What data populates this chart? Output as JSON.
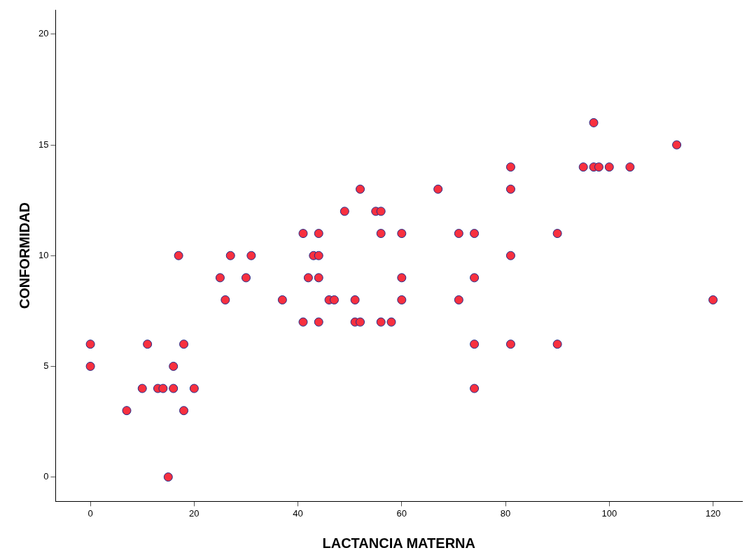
{
  "chart_data": {
    "type": "scatter",
    "xlabel": "LACTANCIA MATERNA",
    "ylabel": "CONFORMIDAD",
    "marker": "circle",
    "xlim": [
      -6.7,
      125.6
    ],
    "xticks": [
      0,
      20,
      40,
      60,
      80,
      100,
      120
    ],
    "ylim": [
      -1.1,
      21.1
    ],
    "yticks": [
      0,
      5,
      10,
      15,
      20
    ],
    "series": [
      {
        "color": "#f8303f",
        "x": [
          0,
          0,
          7,
          10,
          11,
          13,
          14,
          15,
          16,
          16,
          17,
          18,
          18,
          20,
          25,
          26,
          27,
          30,
          31,
          37,
          41,
          41,
          42,
          43,
          44,
          44,
          44,
          44,
          46,
          47,
          49,
          51,
          51,
          52,
          52,
          55,
          56,
          56,
          56,
          58,
          60,
          60,
          60,
          67,
          71,
          71,
          74,
          74,
          74,
          74,
          81,
          81,
          81,
          81,
          90,
          90,
          95,
          97,
          97,
          98,
          100,
          104,
          113,
          120
        ],
        "values": [
          6,
          5,
          3,
          4,
          6,
          4,
          4,
          0,
          5,
          4,
          10,
          6,
          3,
          4,
          9,
          8,
          10,
          9,
          10,
          8,
          11,
          7,
          9,
          10,
          10,
          11,
          9,
          7,
          8,
          8,
          12,
          8,
          7,
          13,
          7,
          12,
          12,
          11,
          7,
          7,
          11,
          9,
          8,
          13,
          11,
          8,
          11,
          9,
          6,
          4,
          14,
          13,
          10,
          6,
          11,
          6,
          14,
          16,
          14,
          14,
          14,
          14,
          15,
          8
        ]
      }
    ]
  }
}
